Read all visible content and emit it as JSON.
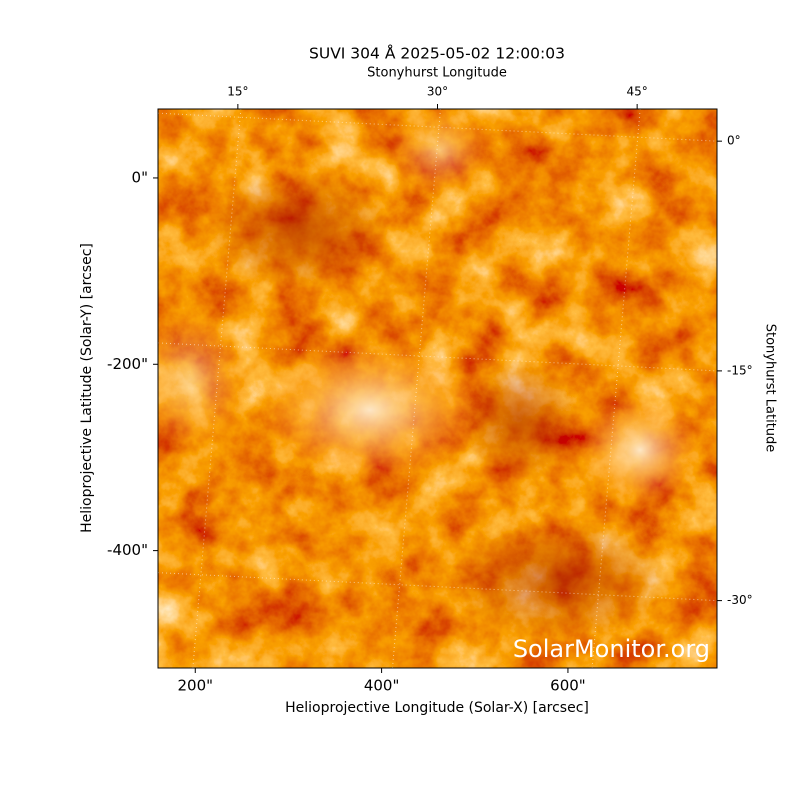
{
  "chart_data": {
    "type": "image",
    "title": "SUVI 304 Å 2025-05-02 12:00:03",
    "xlabel": "Helioprojective Longitude (Solar-X) [arcsec]",
    "ylabel": "Helioprojective Latitude (Solar-Y) [arcsec]",
    "x2label": "Stonyhurst Longitude",
    "y2label": "Stonyhurst Latitude",
    "watermark": "SolarMonitor.org",
    "xlim": [
      160,
      760
    ],
    "ylim": [
      -526,
      74
    ],
    "xticks": [
      {
        "value": 200,
        "label": "200\""
      },
      {
        "value": 400,
        "label": "400\""
      },
      {
        "value": 600,
        "label": "600\""
      }
    ],
    "yticks": [
      {
        "value": 0,
        "label": "0\""
      },
      {
        "value": -200,
        "label": "-200\""
      },
      {
        "value": -400,
        "label": "-400\""
      }
    ],
    "x2lim": [
      9,
      51
    ],
    "x2ticks": [
      {
        "value": 15,
        "label": "15°"
      },
      {
        "value": 30,
        "label": "30°"
      },
      {
        "value": 45,
        "label": "45°"
      }
    ],
    "y2lim": [
      -34.4,
      2.1
    ],
    "y2ticks": [
      {
        "value": 0,
        "label": "0°"
      },
      {
        "value": -15,
        "label": "-15°"
      },
      {
        "value": -30,
        "label": "-30°"
      }
    ],
    "grid": true
  }
}
